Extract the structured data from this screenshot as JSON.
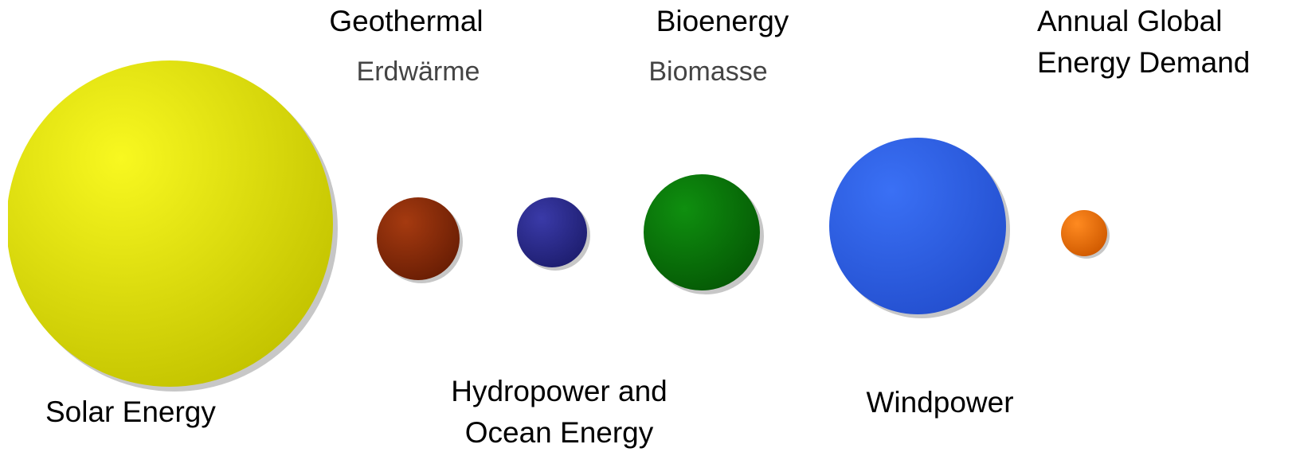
{
  "labels": {
    "geothermal": {
      "title": "Geothermal",
      "subtitle": "Erdwärme"
    },
    "bioenergy": {
      "title": "Bioenergy",
      "subtitle": "Biomasse"
    },
    "demand": {
      "lines": [
        "Annual Global",
        "Energy Demand"
      ]
    },
    "solar": {
      "title": "Solar Energy"
    },
    "hydro": {
      "lines": [
        "Hydropower and",
        "Ocean Energy"
      ]
    },
    "wind": {
      "title": "Windpower"
    }
  }
}
